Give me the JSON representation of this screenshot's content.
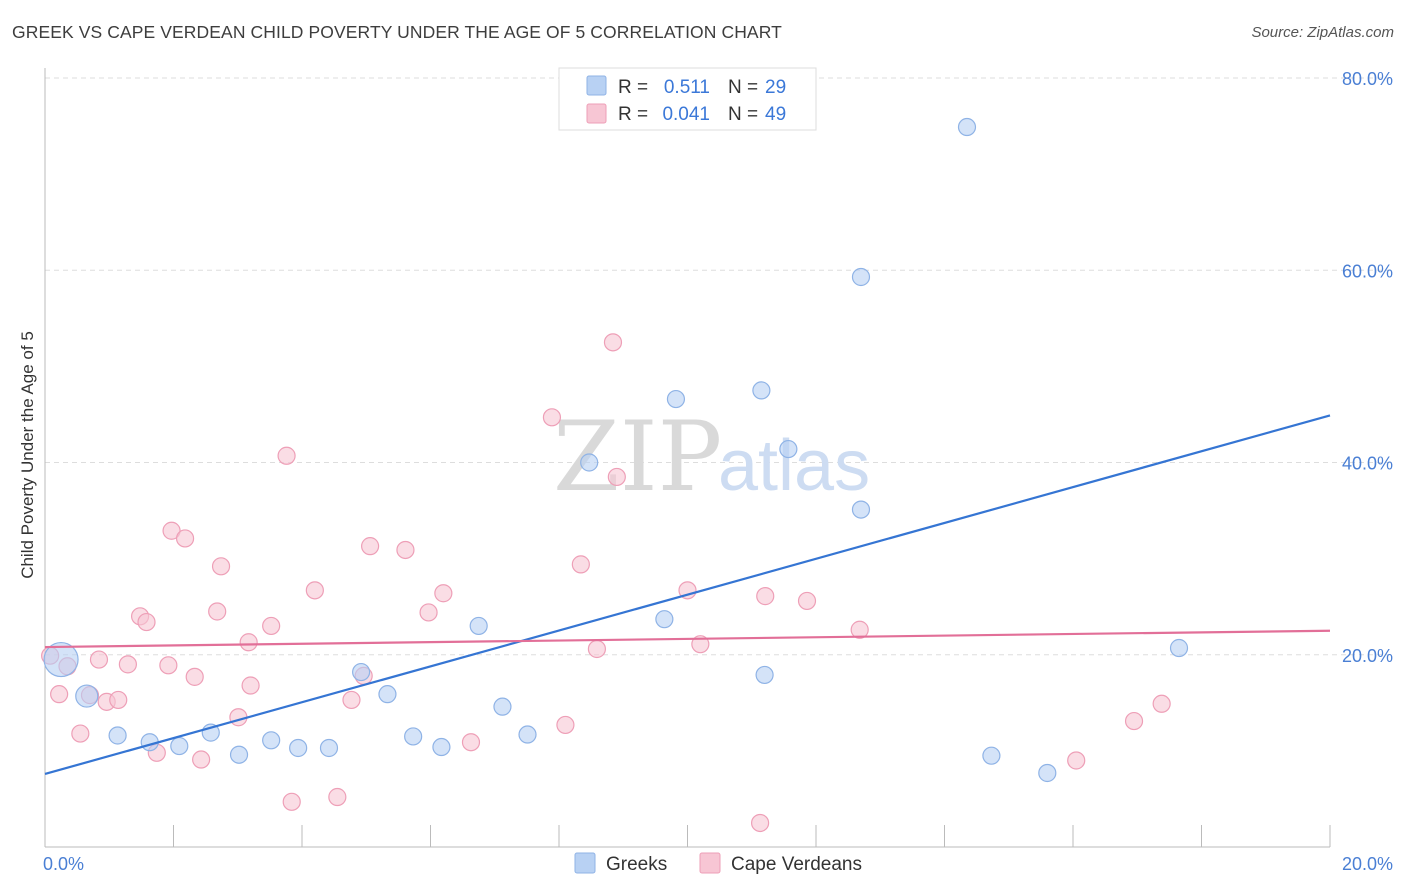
{
  "title": "GREEK VS CAPE VERDEAN CHILD POVERTY UNDER THE AGE OF 5 CORRELATION CHART",
  "source": "Source: ZipAtlas.com",
  "watermark": {
    "zip": "ZIP",
    "atlas": "atlas"
  },
  "colors": {
    "greeks_fill": "#b8d1f3",
    "greeks_stroke": "#8fb3e6",
    "greeks_line": "#3575d3",
    "cape_fill": "#f7c6d4",
    "cape_stroke": "#ee9fb7",
    "cape_line": "#e26f98",
    "tick_label": "#4a7fd4",
    "grid": "#dddddd"
  },
  "legend": {
    "r_label": "R =",
    "n_label": "N =",
    "rows": [
      {
        "series": "Greeks",
        "r": "0.511",
        "n": "29"
      },
      {
        "series": "Cape Verdeans",
        "r": "0.041",
        "n": "49"
      }
    ]
  },
  "chart_data": {
    "type": "scatter",
    "title": "GREEK VS CAPE VERDEAN CHILD POVERTY UNDER THE AGE OF 5 CORRELATION CHART",
    "xlabel": "",
    "ylabel": "Child Poverty Under the Age of 5",
    "xlim": [
      0,
      20
    ],
    "ylim": [
      0,
      80
    ],
    "x_tick_labels": [
      {
        "value": 0,
        "label": "0.0%"
      },
      {
        "value": 20,
        "label": "20.0%"
      }
    ],
    "y_tick_labels": [
      {
        "value": 20,
        "label": "20.0%"
      },
      {
        "value": 40,
        "label": "40.0%"
      },
      {
        "value": 60,
        "label": "60.0%"
      },
      {
        "value": 80,
        "label": "80.0%"
      }
    ],
    "grid": true,
    "legend_position": "bottom-center",
    "series": [
      {
        "name": "Greeks",
        "r": 0.511,
        "n": 29,
        "trend": {
          "x": [
            0,
            20
          ],
          "y": [
            7.6,
            44.9
          ]
        },
        "points": [
          {
            "x": 0.25,
            "y": 19.5,
            "big": true
          },
          {
            "x": 0.65,
            "y": 15.7,
            "big": true
          },
          {
            "x": 1.13,
            "y": 11.6
          },
          {
            "x": 1.63,
            "y": 10.9
          },
          {
            "x": 2.09,
            "y": 10.5
          },
          {
            "x": 2.58,
            "y": 11.9
          },
          {
            "x": 3.02,
            "y": 9.6
          },
          {
            "x": 3.52,
            "y": 11.1
          },
          {
            "x": 3.94,
            "y": 10.3
          },
          {
            "x": 4.42,
            "y": 10.3
          },
          {
            "x": 4.92,
            "y": 18.2
          },
          {
            "x": 5.33,
            "y": 15.9
          },
          {
            "x": 5.73,
            "y": 11.5
          },
          {
            "x": 6.17,
            "y": 10.4
          },
          {
            "x": 6.75,
            "y": 23.0
          },
          {
            "x": 7.12,
            "y": 14.6
          },
          {
            "x": 7.51,
            "y": 11.7
          },
          {
            "x": 8.47,
            "y": 40.0
          },
          {
            "x": 9.64,
            "y": 23.7
          },
          {
            "x": 9.82,
            "y": 46.6
          },
          {
            "x": 11.15,
            "y": 47.5
          },
          {
            "x": 11.2,
            "y": 17.9
          },
          {
            "x": 11.57,
            "y": 41.4
          },
          {
            "x": 12.7,
            "y": 35.1
          },
          {
            "x": 12.7,
            "y": 59.3
          },
          {
            "x": 14.35,
            "y": 74.9
          },
          {
            "x": 14.73,
            "y": 9.5
          },
          {
            "x": 15.6,
            "y": 7.7
          },
          {
            "x": 17.65,
            "y": 20.7
          }
        ]
      },
      {
        "name": "Cape Verdeans",
        "r": 0.041,
        "n": 49,
        "trend": {
          "x": [
            0,
            20
          ],
          "y": [
            20.8,
            22.5
          ]
        },
        "points": [
          {
            "x": 0.08,
            "y": 19.9
          },
          {
            "x": 0.22,
            "y": 15.9
          },
          {
            "x": 0.35,
            "y": 18.8
          },
          {
            "x": 0.55,
            "y": 11.8
          },
          {
            "x": 0.7,
            "y": 15.8
          },
          {
            "x": 0.84,
            "y": 19.5
          },
          {
            "x": 0.96,
            "y": 15.1
          },
          {
            "x": 1.14,
            "y": 15.3
          },
          {
            "x": 1.29,
            "y": 19.0
          },
          {
            "x": 1.48,
            "y": 24.0
          },
          {
            "x": 1.58,
            "y": 23.4
          },
          {
            "x": 1.74,
            "y": 9.8
          },
          {
            "x": 1.92,
            "y": 18.9
          },
          {
            "x": 1.97,
            "y": 32.9
          },
          {
            "x": 2.18,
            "y": 32.1
          },
          {
            "x": 2.33,
            "y": 17.7
          },
          {
            "x": 2.43,
            "y": 9.1
          },
          {
            "x": 2.68,
            "y": 24.5
          },
          {
            "x": 2.74,
            "y": 29.2
          },
          {
            "x": 3.01,
            "y": 13.5
          },
          {
            "x": 3.17,
            "y": 21.3
          },
          {
            "x": 3.2,
            "y": 16.8
          },
          {
            "x": 3.52,
            "y": 23.0
          },
          {
            "x": 3.76,
            "y": 40.7
          },
          {
            "x": 3.84,
            "y": 4.7
          },
          {
            "x": 4.2,
            "y": 26.7
          },
          {
            "x": 4.55,
            "y": 5.2
          },
          {
            "x": 4.77,
            "y": 15.3
          },
          {
            "x": 4.96,
            "y": 17.8
          },
          {
            "x": 5.06,
            "y": 31.3
          },
          {
            "x": 5.61,
            "y": 30.9
          },
          {
            "x": 5.97,
            "y": 24.4
          },
          {
            "x": 6.2,
            "y": 26.4
          },
          {
            "x": 6.63,
            "y": 10.9
          },
          {
            "x": 7.89,
            "y": 44.7
          },
          {
            "x": 8.1,
            "y": 12.7
          },
          {
            "x": 8.34,
            "y": 29.4
          },
          {
            "x": 8.59,
            "y": 20.6
          },
          {
            "x": 8.84,
            "y": 52.5
          },
          {
            "x": 8.9,
            "y": 38.5
          },
          {
            "x": 10.0,
            "y": 26.7
          },
          {
            "x": 10.2,
            "y": 21.1
          },
          {
            "x": 11.13,
            "y": 2.5
          },
          {
            "x": 11.21,
            "y": 26.1
          },
          {
            "x": 11.86,
            "y": 25.6
          },
          {
            "x": 12.68,
            "y": 22.6
          },
          {
            "x": 16.05,
            "y": 9.0
          },
          {
            "x": 16.95,
            "y": 13.1
          },
          {
            "x": 17.38,
            "y": 14.9
          }
        ]
      }
    ]
  }
}
